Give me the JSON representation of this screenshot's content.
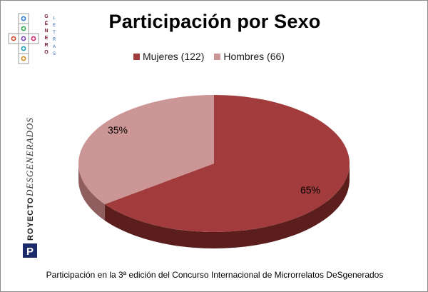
{
  "chart_data": {
    "type": "pie",
    "title": "Participación por Sexo",
    "categories": [
      "Mujeres (122)",
      "Hombres (66)"
    ],
    "values": [
      122,
      66
    ],
    "percent_labels": [
      "65%",
      "35%"
    ],
    "colors": [
      "#a23b3b",
      "#cd9696"
    ],
    "side_colors": [
      "#5c1d1d",
      "#8f5e5e"
    ],
    "legend_placement": "top"
  },
  "footer": "Participación en la 3ª edición del Concurso Internacional de Microrrelatos DeSgenerados",
  "logo": {
    "text": "GÉNERO LETRAS"
  },
  "brand": {
    "text": "PROYECTO DESGENERADOS"
  }
}
